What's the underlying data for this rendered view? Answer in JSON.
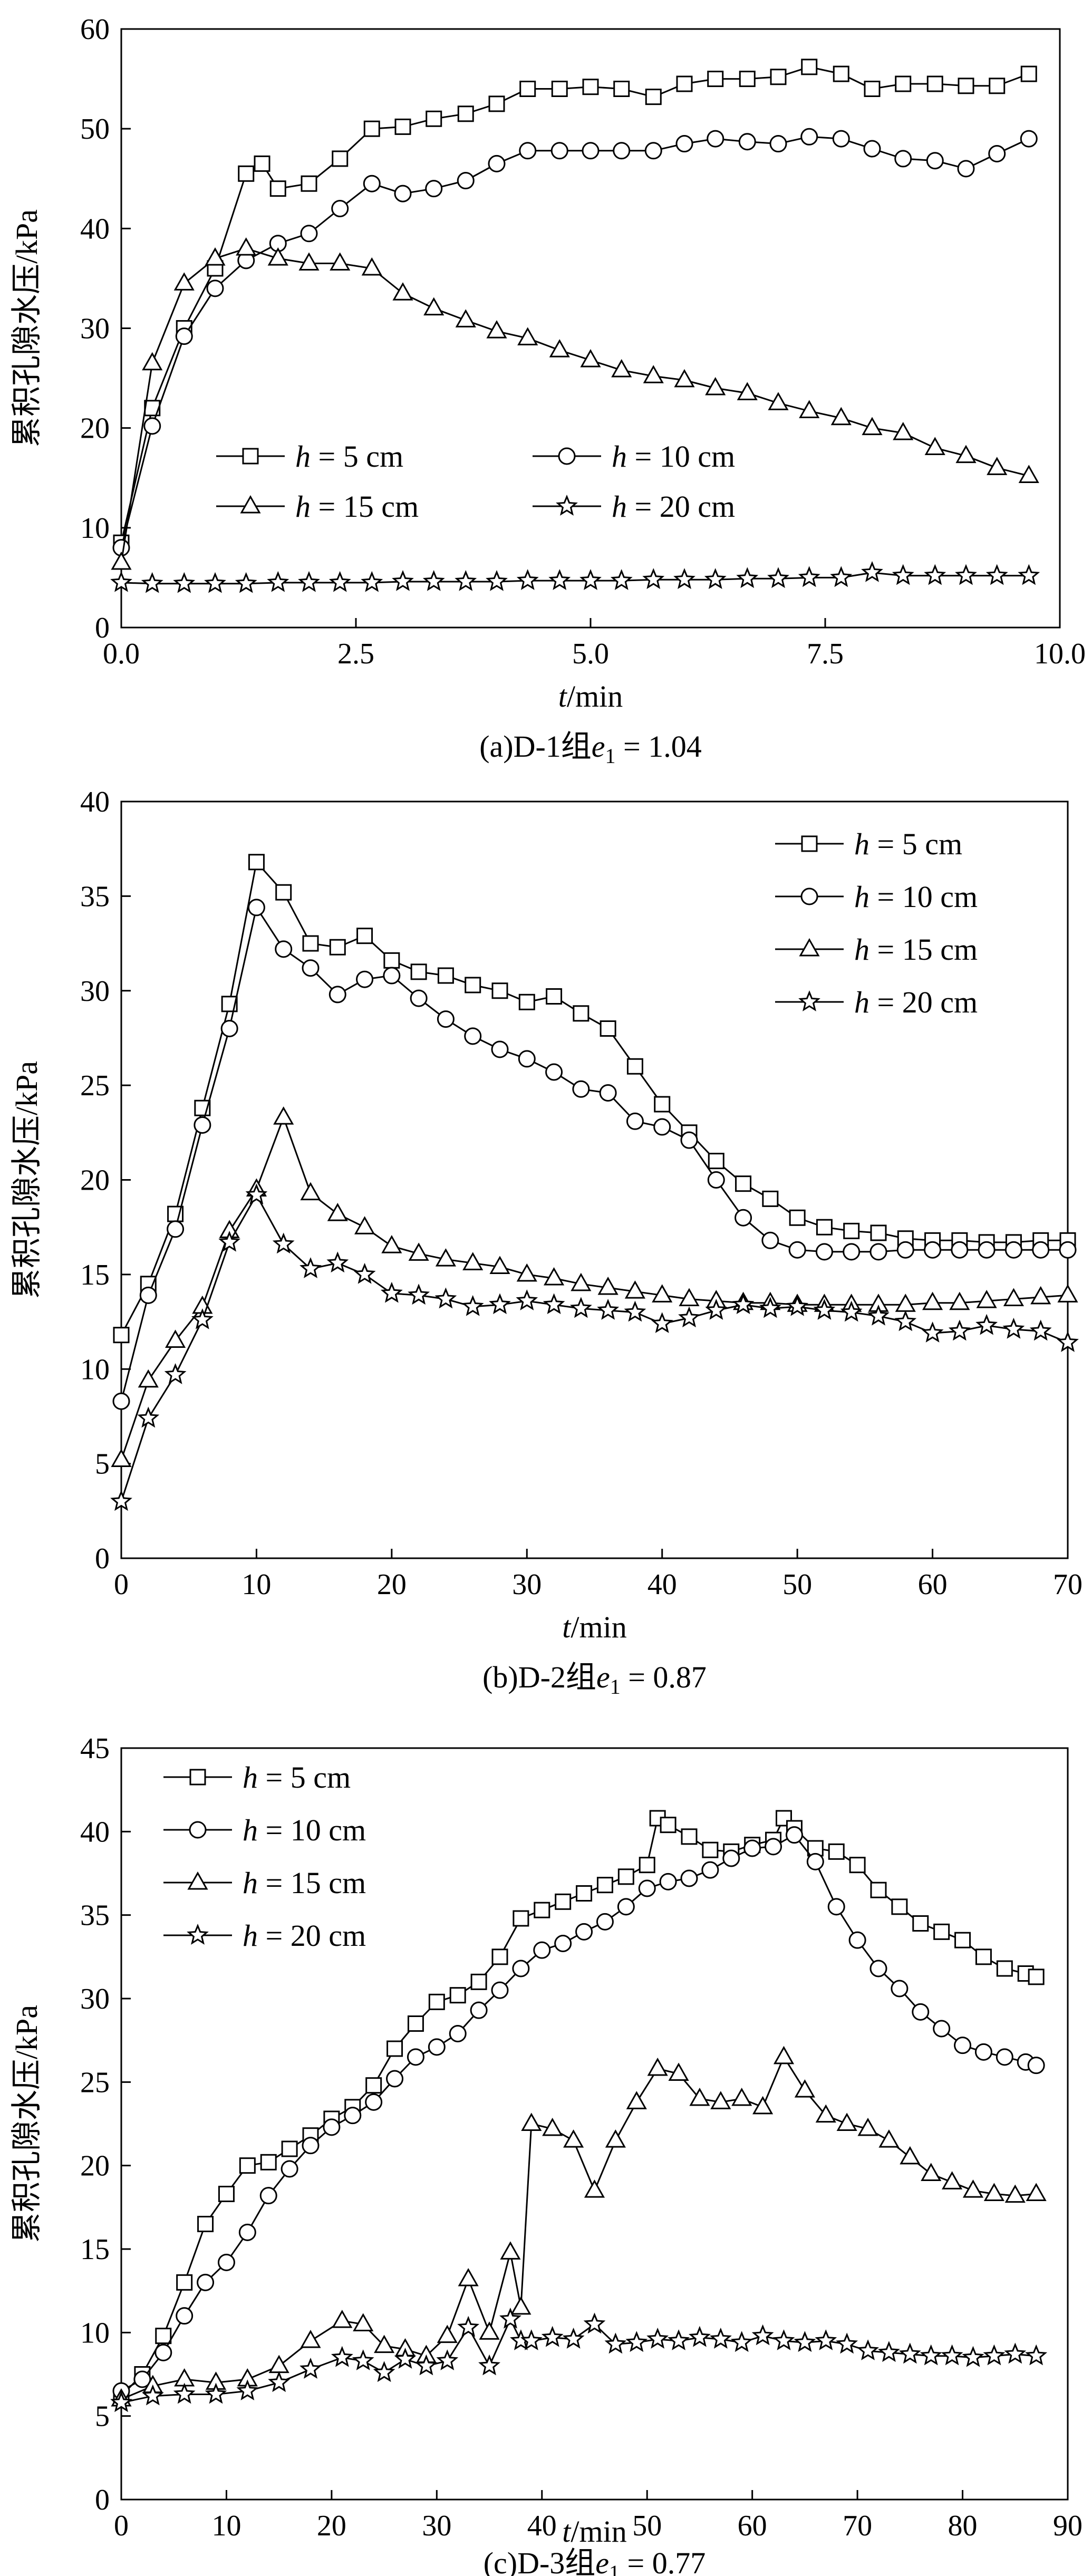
{
  "chart_data": [
    {
      "type": "line",
      "caption": "(a)D-1组e₁ = 1.04",
      "xlabel": "t/min",
      "ylabel": "累积孔隙水压/kPa",
      "xlim": [
        0,
        10
      ],
      "ylim": [
        0,
        60
      ],
      "xticks": [
        0,
        2.5,
        5,
        7.5,
        10
      ],
      "xtick_labels": [
        "0.0",
        "2.5",
        "5.0",
        "7.5",
        "10.0"
      ],
      "yticks": [
        0,
        10,
        20,
        30,
        40,
        50,
        60
      ],
      "ytick_labels": [
        "0",
        "10",
        "20",
        "30",
        "40",
        "50",
        "60"
      ],
      "legend_layout": "grid-2x2",
      "legend_position": "lower-left",
      "series": [
        {
          "name": "h = 5 cm",
          "marker": "square",
          "x": [
            0,
            0.33,
            0.67,
            1,
            1.33,
            1.5,
            1.67,
            2,
            2.33,
            2.67,
            3,
            3.33,
            3.67,
            4,
            4.33,
            4.67,
            5,
            5.33,
            5.67,
            6,
            6.33,
            6.67,
            7,
            7.33,
            7.67,
            8,
            8.33,
            8.67,
            9,
            9.33,
            9.67
          ],
          "y": [
            8.5,
            22,
            30,
            36,
            45.5,
            46.5,
            44,
            44.5,
            47,
            50,
            50.2,
            51,
            51.5,
            52.5,
            54,
            54,
            54.2,
            54,
            53.2,
            54.5,
            55,
            55,
            55.2,
            56.2,
            55.5,
            54,
            54.5,
            54.5,
            54.3,
            54.3,
            55.5
          ]
        },
        {
          "name": "h = 10 cm",
          "marker": "circle",
          "x": [
            0,
            0.33,
            0.67,
            1,
            1.33,
            1.67,
            2,
            2.33,
            2.67,
            3,
            3.33,
            3.67,
            4,
            4.33,
            4.67,
            5,
            5.33,
            5.67,
            6,
            6.33,
            6.67,
            7,
            7.33,
            7.67,
            8,
            8.33,
            8.67,
            9,
            9.33,
            9.67
          ],
          "y": [
            8,
            20.2,
            29.2,
            34,
            36.8,
            38.5,
            39.5,
            42,
            44.5,
            43.5,
            44,
            44.8,
            46.5,
            47.8,
            47.8,
            47.8,
            47.8,
            47.8,
            48.5,
            49,
            48.7,
            48.5,
            49.2,
            49,
            48,
            47,
            46.8,
            46,
            47.5,
            49
          ]
        },
        {
          "name": "h = 15 cm",
          "marker": "triangle",
          "x": [
            0,
            0.33,
            0.67,
            1,
            1.33,
            1.67,
            2,
            2.33,
            2.67,
            3,
            3.33,
            3.67,
            4,
            4.33,
            4.67,
            5,
            5.33,
            5.67,
            6,
            6.33,
            6.67,
            7,
            7.33,
            7.67,
            8,
            8.33,
            8.67,
            9,
            9.33,
            9.67
          ],
          "y": [
            6.5,
            26.5,
            34.5,
            37,
            38,
            37,
            36.5,
            36.5,
            36,
            33.5,
            32,
            30.8,
            29.7,
            29,
            27.8,
            26.8,
            25.8,
            25.2,
            24.8,
            24,
            23.5,
            22.5,
            21.7,
            21,
            20,
            19.5,
            18,
            17.2,
            16,
            15.2
          ]
        },
        {
          "name": "h = 20 cm",
          "marker": "star",
          "x": [
            0,
            0.33,
            0.67,
            1,
            1.33,
            1.67,
            2,
            2.33,
            2.67,
            3,
            3.33,
            3.67,
            4,
            4.33,
            4.67,
            5,
            5.33,
            5.67,
            6,
            6.33,
            6.67,
            7,
            7.33,
            7.67,
            8,
            8.33,
            8.67,
            9,
            9.33,
            9.67
          ],
          "y": [
            4.5,
            4.4,
            4.4,
            4.4,
            4.4,
            4.5,
            4.5,
            4.5,
            4.5,
            4.6,
            4.6,
            4.6,
            4.6,
            4.7,
            4.7,
            4.7,
            4.7,
            4.8,
            4.8,
            4.8,
            4.9,
            4.9,
            5,
            5,
            5.5,
            5.2,
            5.2,
            5.2,
            5.2,
            5.2
          ]
        }
      ]
    },
    {
      "type": "line",
      "caption": "(b)D-2组e₁ = 0.87",
      "xlabel": "t/min",
      "ylabel": "累积孔隙水压/kPa",
      "xlim": [
        0,
        70
      ],
      "ylim": [
        0,
        40
      ],
      "xticks": [
        0,
        10,
        20,
        30,
        40,
        50,
        60,
        70
      ],
      "xtick_labels": [
        "0",
        "10",
        "20",
        "30",
        "40",
        "50",
        "60",
        "70"
      ],
      "yticks": [
        0,
        5,
        10,
        15,
        20,
        25,
        30,
        35,
        40
      ],
      "ytick_labels": [
        "0",
        "5",
        "10",
        "15",
        "20",
        "25",
        "30",
        "35",
        "40"
      ],
      "legend_layout": "column",
      "legend_position": "upper-right",
      "series": [
        {
          "name": "h = 5 cm",
          "marker": "square",
          "x": [
            0,
            2,
            4,
            6,
            8,
            10,
            12,
            14,
            16,
            18,
            20,
            22,
            24,
            26,
            28,
            30,
            32,
            34,
            36,
            38,
            40,
            42,
            44,
            46,
            48,
            50,
            52,
            54,
            56,
            58,
            60,
            62,
            64,
            66,
            68,
            70
          ],
          "y": [
            11.8,
            14.5,
            18.2,
            23.8,
            29.3,
            36.8,
            35.2,
            32.5,
            32.3,
            32.9,
            31.6,
            31,
            30.8,
            30.3,
            30,
            29.4,
            29.7,
            28.8,
            28,
            26,
            24,
            22.5,
            21,
            19.8,
            19,
            18,
            17.5,
            17.3,
            17.2,
            16.9,
            16.8,
            16.8,
            16.7,
            16.7,
            16.8,
            16.8
          ]
        },
        {
          "name": "h = 10 cm",
          "marker": "circle",
          "x": [
            0,
            2,
            4,
            6,
            8,
            10,
            12,
            14,
            16,
            18,
            20,
            22,
            24,
            26,
            28,
            30,
            32,
            34,
            36,
            38,
            40,
            42,
            44,
            46,
            48,
            50,
            52,
            54,
            56,
            58,
            60,
            62,
            64,
            66,
            68,
            70
          ],
          "y": [
            8.3,
            13.9,
            17.4,
            22.9,
            28,
            34.4,
            32.2,
            31.2,
            29.8,
            30.6,
            30.8,
            29.6,
            28.5,
            27.6,
            26.9,
            26.4,
            25.7,
            24.8,
            24.6,
            23.1,
            22.8,
            22.1,
            20,
            18,
            16.8,
            16.3,
            16.2,
            16.2,
            16.2,
            16.3,
            16.3,
            16.3,
            16.3,
            16.3,
            16.3,
            16.3
          ]
        },
        {
          "name": "h = 15 cm",
          "marker": "triangle",
          "x": [
            0,
            2,
            4,
            6,
            8,
            10,
            12,
            14,
            16,
            18,
            20,
            22,
            24,
            26,
            28,
            30,
            32,
            34,
            36,
            38,
            40,
            42,
            44,
            46,
            48,
            50,
            52,
            54,
            56,
            58,
            60,
            62,
            64,
            66,
            68,
            70
          ],
          "y": [
            5.2,
            9.4,
            11.5,
            13.3,
            17.3,
            19.5,
            23.3,
            19.3,
            18.2,
            17.5,
            16.5,
            16.1,
            15.8,
            15.6,
            15.4,
            15,
            14.8,
            14.5,
            14.3,
            14.1,
            13.9,
            13.7,
            13.6,
            13.5,
            13.5,
            13.4,
            13.4,
            13.4,
            13.4,
            13.4,
            13.5,
            13.5,
            13.6,
            13.7,
            13.8,
            13.9
          ]
        },
        {
          "name": "h = 20 cm",
          "marker": "star",
          "x": [
            0,
            2,
            4,
            6,
            8,
            10,
            12,
            14,
            16,
            18,
            20,
            22,
            24,
            26,
            28,
            30,
            32,
            34,
            36,
            38,
            40,
            42,
            44,
            46,
            48,
            50,
            52,
            54,
            56,
            58,
            60,
            62,
            64,
            66,
            68,
            70
          ],
          "y": [
            3,
            7.4,
            9.7,
            12.6,
            16.7,
            19.2,
            16.6,
            15.3,
            15.6,
            15,
            14,
            13.9,
            13.7,
            13.3,
            13.4,
            13.6,
            13.4,
            13.2,
            13.1,
            13,
            12.4,
            12.7,
            13.1,
            13.4,
            13.2,
            13.3,
            13.1,
            13,
            12.8,
            12.5,
            11.9,
            12,
            12.3,
            12.1,
            12,
            11.4
          ]
        }
      ]
    },
    {
      "type": "line",
      "caption": "(c)D-3组e₁ = 0.77",
      "xlabel": "t/min",
      "ylabel": "累积孔隙水压/kPa",
      "xlim": [
        0,
        90
      ],
      "ylim": [
        0,
        45
      ],
      "xticks": [
        0,
        10,
        20,
        30,
        40,
        50,
        60,
        70,
        80,
        90
      ],
      "xtick_labels": [
        "0",
        "10",
        "20",
        "30",
        "40",
        "50",
        "60",
        "70",
        "80",
        "90"
      ],
      "yticks": [
        0,
        5,
        10,
        15,
        20,
        25,
        30,
        35,
        40,
        45
      ],
      "ytick_labels": [
        "0",
        "5",
        "10",
        "15",
        "20",
        "25",
        "30",
        "35",
        "40",
        "45"
      ],
      "legend_layout": "column",
      "legend_position": "upper-left",
      "series": [
        {
          "name": "h = 5 cm",
          "marker": "square",
          "x": [
            0,
            2,
            4,
            6,
            8,
            10,
            12,
            14,
            16,
            18,
            20,
            22,
            24,
            26,
            28,
            30,
            32,
            34,
            36,
            38,
            40,
            42,
            44,
            46,
            48,
            50,
            51,
            52,
            54,
            56,
            58,
            60,
            62,
            63,
            64,
            66,
            68,
            70,
            72,
            74,
            76,
            78,
            80,
            82,
            84,
            86,
            87
          ],
          "y": [
            6.2,
            7.5,
            9.8,
            13,
            16.5,
            18.3,
            20,
            20.2,
            21,
            21.8,
            22.8,
            23.5,
            24.8,
            27,
            28.5,
            29.8,
            30.2,
            31,
            32.5,
            34.8,
            35.3,
            35.8,
            36.3,
            36.8,
            37.3,
            38,
            40.8,
            40.4,
            39.7,
            38.9,
            38.8,
            39.2,
            39.5,
            40.8,
            40.2,
            39,
            38.8,
            38,
            36.5,
            35.5,
            34.5,
            34,
            33.5,
            32.5,
            31.8,
            31.5,
            31.3
          ]
        },
        {
          "name": "h = 10 cm",
          "marker": "circle",
          "x": [
            0,
            2,
            4,
            6,
            8,
            10,
            12,
            14,
            16,
            18,
            20,
            22,
            24,
            26,
            28,
            30,
            32,
            34,
            36,
            38,
            40,
            42,
            44,
            46,
            48,
            50,
            52,
            54,
            56,
            58,
            60,
            62,
            64,
            66,
            68,
            70,
            72,
            74,
            76,
            78,
            80,
            82,
            84,
            86,
            87
          ],
          "y": [
            6.5,
            7.2,
            8.8,
            11,
            13,
            14.2,
            16,
            18.2,
            19.8,
            21.2,
            22.3,
            23,
            23.8,
            25.2,
            26.5,
            27.1,
            27.9,
            29.3,
            30.5,
            31.8,
            32.9,
            33.3,
            34,
            34.6,
            35.5,
            36.6,
            37,
            37.2,
            37.7,
            38.4,
            39,
            39.1,
            39.8,
            38.2,
            35.5,
            33.5,
            31.8,
            30.6,
            29.2,
            28.2,
            27.2,
            26.8,
            26.5,
            26.2,
            26
          ]
        },
        {
          "name": "h = 15 cm",
          "marker": "triangle",
          "x": [
            0,
            3,
            6,
            9,
            12,
            15,
            18,
            21,
            23,
            25,
            27,
            29,
            31,
            33,
            35,
            37,
            38,
            39,
            41,
            43,
            45,
            47,
            49,
            51,
            53,
            55,
            57,
            59,
            61,
            63,
            65,
            67,
            69,
            71,
            73,
            75,
            77,
            79,
            81,
            83,
            85,
            87
          ],
          "y": [
            6,
            6.8,
            7.2,
            7,
            7.2,
            8,
            9.5,
            10.7,
            10.5,
            9.2,
            9,
            8.6,
            9.8,
            13.2,
            10,
            14.8,
            11.5,
            22.5,
            22.2,
            21.5,
            18.5,
            21.5,
            23.8,
            25.8,
            25.5,
            24,
            23.8,
            24,
            23.5,
            26.5,
            24.5,
            23,
            22.5,
            22.2,
            21.5,
            20.5,
            19.5,
            19,
            18.5,
            18.3,
            18.2,
            18.3
          ]
        },
        {
          "name": "h = 20 cm",
          "marker": "star",
          "x": [
            0,
            3,
            6,
            9,
            12,
            15,
            18,
            21,
            23,
            25,
            27,
            29,
            31,
            33,
            35,
            37,
            38,
            39,
            41,
            43,
            45,
            47,
            49,
            51,
            53,
            55,
            57,
            59,
            61,
            63,
            65,
            67,
            69,
            71,
            73,
            75,
            77,
            79,
            81,
            83,
            85,
            87
          ],
          "y": [
            5.8,
            6.2,
            6.3,
            6.3,
            6.5,
            7,
            7.8,
            8.5,
            8.3,
            7.6,
            8.4,
            8,
            8.3,
            10.3,
            8,
            10.8,
            9.5,
            9.5,
            9.7,
            9.6,
            10.5,
            9.3,
            9.4,
            9.6,
            9.5,
            9.7,
            9.6,
            9.4,
            9.8,
            9.5,
            9.4,
            9.5,
            9.3,
            8.9,
            8.8,
            8.7,
            8.6,
            8.6,
            8.5,
            8.6,
            8.7,
            8.6
          ]
        }
      ]
    }
  ]
}
